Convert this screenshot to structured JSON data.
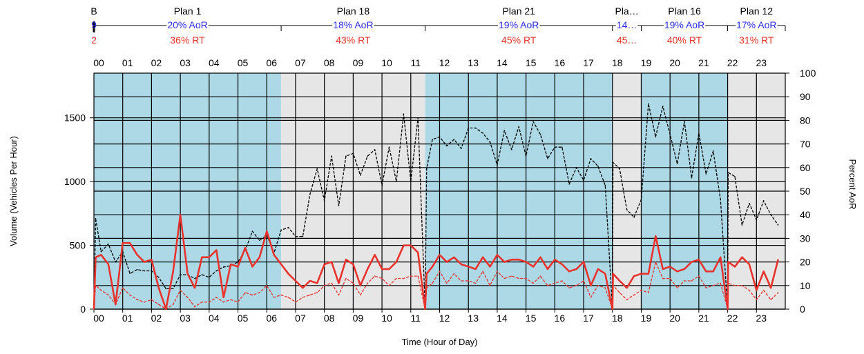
{
  "chart_data": {
    "type": "line",
    "xlabel": "Time (Hour of Day)",
    "ylabel": "Volume (Vehicles Per Hour)",
    "y2label": "Percent AoR",
    "xlim": [
      0,
      24
    ],
    "ylim": [
      0,
      1850
    ],
    "y2lim": [
      0,
      100
    ],
    "x_ticks": [
      "00",
      "01",
      "02",
      "03",
      "04",
      "05",
      "06",
      "07",
      "08",
      "09",
      "10",
      "11",
      "12",
      "13",
      "14",
      "15",
      "16",
      "17",
      "18",
      "19",
      "20",
      "21",
      "22",
      "23"
    ],
    "y_ticks": [
      0,
      500,
      1000,
      1500
    ],
    "y2_ticks": [
      0,
      10,
      20,
      30,
      40,
      50,
      60,
      70,
      80,
      90,
      100
    ],
    "grid": true,
    "top_legend": [
      "B",
      "9",
      "2"
    ],
    "plans": [
      {
        "name": "Plan 1",
        "aor": "20% AoR",
        "rt": "36% RT",
        "start": 0.0,
        "end": 6.5,
        "color": "#add8e6"
      },
      {
        "name": "Plan 18",
        "aor": "18% AoR",
        "rt": "43% RT",
        "start": 6.5,
        "end": 11.5,
        "color": "#e6e6e6"
      },
      {
        "name": "Plan 21",
        "aor": "19% AoR",
        "rt": "45% RT",
        "start": 11.5,
        "end": 18.0,
        "color": "#add8e6"
      },
      {
        "name": "Pla…",
        "aor": "14…",
        "rt": "45…",
        "start": 18.0,
        "end": 19.0,
        "color": "#e6e6e6"
      },
      {
        "name": "Plan 16",
        "aor": "19% AoR",
        "rt": "40% RT",
        "start": 19.0,
        "end": 22.0,
        "color": "#add8e6"
      },
      {
        "name": "Plan 12",
        "aor": "17% AoR",
        "rt": "31% RT",
        "start": 22.0,
        "end": 24.0,
        "color": "#e6e6e6"
      }
    ],
    "series": [
      {
        "axis": "y",
        "color": "#000000",
        "style": "dashed",
        "points": [
          [
            0.0,
            0
          ],
          [
            0.06,
            710
          ],
          [
            0.25,
            450
          ],
          [
            0.5,
            510
          ],
          [
            0.75,
            370
          ],
          [
            1.0,
            450
          ],
          [
            1.25,
            280
          ],
          [
            1.5,
            310
          ],
          [
            1.75,
            300
          ],
          [
            2.0,
            300
          ],
          [
            2.25,
            250
          ],
          [
            2.5,
            160
          ],
          [
            2.75,
            160
          ],
          [
            3.0,
            270
          ],
          [
            3.25,
            270
          ],
          [
            3.5,
            240
          ],
          [
            3.75,
            270
          ],
          [
            4.0,
            250
          ],
          [
            4.25,
            300
          ],
          [
            4.5,
            330
          ],
          [
            4.75,
            340
          ],
          [
            5.0,
            370
          ],
          [
            5.25,
            460
          ],
          [
            5.5,
            610
          ],
          [
            5.75,
            540
          ],
          [
            6.0,
            580
          ],
          [
            6.25,
            440
          ],
          [
            6.5,
            620
          ],
          [
            6.75,
            640
          ],
          [
            7.0,
            570
          ],
          [
            7.25,
            570
          ],
          [
            7.5,
            900
          ],
          [
            7.75,
            1100
          ],
          [
            8.0,
            850
          ],
          [
            8.25,
            1200
          ],
          [
            8.5,
            810
          ],
          [
            8.75,
            1200
          ],
          [
            9.0,
            1220
          ],
          [
            9.25,
            1050
          ],
          [
            9.5,
            1200
          ],
          [
            9.75,
            1250
          ],
          [
            10.0,
            970
          ],
          [
            10.25,
            1270
          ],
          [
            10.5,
            1000
          ],
          [
            10.75,
            1530
          ],
          [
            11.0,
            1000
          ],
          [
            11.25,
            1500
          ],
          [
            11.5,
            0
          ],
          [
            11.55,
            1100
          ],
          [
            11.75,
            1330
          ],
          [
            12.0,
            1350
          ],
          [
            12.25,
            1280
          ],
          [
            12.5,
            1330
          ],
          [
            12.75,
            1260
          ],
          [
            13.0,
            1420
          ],
          [
            13.25,
            1420
          ],
          [
            13.5,
            1380
          ],
          [
            13.75,
            1310
          ],
          [
            14.0,
            1130
          ],
          [
            14.25,
            1400
          ],
          [
            14.5,
            1250
          ],
          [
            14.75,
            1430
          ],
          [
            15.0,
            1200
          ],
          [
            15.25,
            1470
          ],
          [
            15.5,
            1370
          ],
          [
            15.75,
            1180
          ],
          [
            16.0,
            1270
          ],
          [
            16.25,
            1270
          ],
          [
            16.5,
            980
          ],
          [
            16.75,
            1110
          ],
          [
            17.0,
            1010
          ],
          [
            17.25,
            1180
          ],
          [
            17.5,
            1120
          ],
          [
            17.75,
            970
          ],
          [
            18.0,
            0
          ],
          [
            18.02,
            1150
          ],
          [
            18.25,
            1100
          ],
          [
            18.5,
            780
          ],
          [
            18.75,
            720
          ],
          [
            19.0,
            860
          ],
          [
            19.25,
            1610
          ],
          [
            19.5,
            1350
          ],
          [
            19.75,
            1590
          ],
          [
            20.0,
            1370
          ],
          [
            20.25,
            1140
          ],
          [
            20.5,
            1470
          ],
          [
            20.75,
            1030
          ],
          [
            21.0,
            1380
          ],
          [
            21.25,
            1060
          ],
          [
            21.5,
            1240
          ],
          [
            21.75,
            860
          ],
          [
            22.0,
            0
          ],
          [
            22.02,
            1070
          ],
          [
            22.25,
            1040
          ],
          [
            22.5,
            660
          ],
          [
            22.75,
            830
          ],
          [
            23.0,
            700
          ],
          [
            23.25,
            850
          ],
          [
            23.5,
            740
          ],
          [
            23.75,
            660
          ]
        ]
      },
      {
        "axis": "y2",
        "color": "#e8322c",
        "style": "solid",
        "points": [
          [
            0.0,
            0
          ],
          [
            0.06,
            22
          ],
          [
            0.25,
            23
          ],
          [
            0.5,
            19
          ],
          [
            0.75,
            2
          ],
          [
            1.0,
            28
          ],
          [
            1.25,
            28
          ],
          [
            1.5,
            23
          ],
          [
            1.75,
            20
          ],
          [
            2.0,
            21
          ],
          [
            2.25,
            9
          ],
          [
            2.5,
            0
          ],
          [
            2.75,
            16
          ],
          [
            3.0,
            40
          ],
          [
            3.25,
            15
          ],
          [
            3.5,
            9
          ],
          [
            3.75,
            22
          ],
          [
            4.0,
            22
          ],
          [
            4.25,
            25
          ],
          [
            4.5,
            5
          ],
          [
            4.75,
            19
          ],
          [
            5.0,
            18
          ],
          [
            5.25,
            26
          ],
          [
            5.5,
            18
          ],
          [
            5.75,
            22
          ],
          [
            6.0,
            33
          ],
          [
            6.25,
            23
          ],
          [
            6.5,
            19
          ],
          [
            6.75,
            15
          ],
          [
            7.0,
            12
          ],
          [
            7.25,
            9
          ],
          [
            7.5,
            12
          ],
          [
            7.75,
            11
          ],
          [
            8.0,
            19
          ],
          [
            8.25,
            20
          ],
          [
            8.5,
            11
          ],
          [
            8.75,
            21
          ],
          [
            9.0,
            19
          ],
          [
            9.25,
            10
          ],
          [
            9.5,
            17
          ],
          [
            9.75,
            23
          ],
          [
            10.0,
            17
          ],
          [
            10.25,
            17
          ],
          [
            10.5,
            20
          ],
          [
            10.75,
            27
          ],
          [
            11.0,
            27
          ],
          [
            11.25,
            24
          ],
          [
            11.5,
            0
          ],
          [
            11.55,
            15
          ],
          [
            11.75,
            18
          ],
          [
            12.0,
            23
          ],
          [
            12.25,
            20
          ],
          [
            12.5,
            22
          ],
          [
            12.75,
            19
          ],
          [
            13.0,
            18
          ],
          [
            13.25,
            17
          ],
          [
            13.5,
            22
          ],
          [
            13.75,
            18
          ],
          [
            14.0,
            23
          ],
          [
            14.25,
            20
          ],
          [
            14.5,
            21
          ],
          [
            14.75,
            21
          ],
          [
            15.0,
            20
          ],
          [
            15.25,
            18
          ],
          [
            15.5,
            22
          ],
          [
            15.75,
            17
          ],
          [
            16.0,
            21
          ],
          [
            16.25,
            19
          ],
          [
            16.5,
            16
          ],
          [
            16.75,
            17
          ],
          [
            17.0,
            20
          ],
          [
            17.25,
            10
          ],
          [
            17.5,
            17
          ],
          [
            17.75,
            15
          ],
          [
            18.0,
            0
          ],
          [
            18.02,
            15
          ],
          [
            18.25,
            12
          ],
          [
            18.5,
            9
          ],
          [
            18.75,
            14
          ],
          [
            19.0,
            15
          ],
          [
            19.25,
            15
          ],
          [
            19.5,
            31
          ],
          [
            19.75,
            17
          ],
          [
            20.0,
            18
          ],
          [
            20.25,
            16
          ],
          [
            20.5,
            17
          ],
          [
            20.75,
            20
          ],
          [
            21.0,
            21
          ],
          [
            21.25,
            16
          ],
          [
            21.5,
            16
          ],
          [
            21.75,
            22
          ],
          [
            22.0,
            0
          ],
          [
            22.02,
            20
          ],
          [
            22.25,
            18
          ],
          [
            22.5,
            22
          ],
          [
            22.75,
            19
          ],
          [
            23.0,
            8
          ],
          [
            23.25,
            16
          ],
          [
            23.5,
            9
          ],
          [
            23.75,
            21
          ]
        ]
      },
      {
        "axis": "y2",
        "color": "#e8322c",
        "style": "dashed",
        "points": [
          [
            0.0,
            0
          ],
          [
            0.06,
            10
          ],
          [
            0.25,
            8
          ],
          [
            0.5,
            6
          ],
          [
            0.75,
            2
          ],
          [
            1.0,
            9
          ],
          [
            1.25,
            6
          ],
          [
            1.5,
            4
          ],
          [
            1.75,
            3
          ],
          [
            2.0,
            4
          ],
          [
            2.25,
            2
          ],
          [
            2.5,
            0
          ],
          [
            2.75,
            2
          ],
          [
            3.0,
            8
          ],
          [
            3.25,
            5
          ],
          [
            3.5,
            1
          ],
          [
            3.75,
            3
          ],
          [
            4.0,
            3
          ],
          [
            4.25,
            5
          ],
          [
            4.5,
            3
          ],
          [
            4.75,
            4
          ],
          [
            5.0,
            3
          ],
          [
            5.25,
            7
          ],
          [
            5.5,
            6
          ],
          [
            5.75,
            7
          ],
          [
            6.0,
            10
          ],
          [
            6.25,
            5
          ],
          [
            6.5,
            6
          ],
          [
            6.75,
            5
          ],
          [
            7.0,
            3
          ],
          [
            7.25,
            5
          ],
          [
            7.5,
            6
          ],
          [
            7.75,
            7
          ],
          [
            8.0,
            10
          ],
          [
            8.25,
            11
          ],
          [
            8.5,
            6
          ],
          [
            8.75,
            13
          ],
          [
            9.0,
            11
          ],
          [
            9.25,
            6
          ],
          [
            9.5,
            11
          ],
          [
            9.75,
            14
          ],
          [
            10.0,
            13
          ],
          [
            10.25,
            10
          ],
          [
            10.5,
            13
          ],
          [
            10.75,
            13
          ],
          [
            11.0,
            14
          ],
          [
            11.25,
            14
          ],
          [
            11.5,
            0
          ],
          [
            11.55,
            9
          ],
          [
            11.75,
            11
          ],
          [
            12.0,
            16
          ],
          [
            12.25,
            11
          ],
          [
            12.5,
            15
          ],
          [
            12.75,
            12
          ],
          [
            13.0,
            12
          ],
          [
            13.25,
            11
          ],
          [
            13.5,
            16
          ],
          [
            13.75,
            10
          ],
          [
            14.0,
            16
          ],
          [
            14.25,
            13
          ],
          [
            14.5,
            14
          ],
          [
            14.75,
            13
          ],
          [
            15.0,
            13
          ],
          [
            15.25,
            11
          ],
          [
            15.5,
            14
          ],
          [
            15.75,
            10
          ],
          [
            16.0,
            11
          ],
          [
            16.25,
            12
          ],
          [
            16.5,
            9
          ],
          [
            16.75,
            10
          ],
          [
            17.0,
            12
          ],
          [
            17.25,
            5
          ],
          [
            17.5,
            10
          ],
          [
            17.75,
            9
          ],
          [
            18.0,
            0
          ],
          [
            18.02,
            10
          ],
          [
            18.25,
            7
          ],
          [
            18.5,
            4
          ],
          [
            18.75,
            6
          ],
          [
            19.0,
            8
          ],
          [
            19.25,
            7
          ],
          [
            19.5,
            20
          ],
          [
            19.75,
            13
          ],
          [
            20.0,
            13
          ],
          [
            20.25,
            9
          ],
          [
            20.5,
            12
          ],
          [
            20.75,
            12
          ],
          [
            21.0,
            14
          ],
          [
            21.25,
            9
          ],
          [
            21.5,
            10
          ],
          [
            21.75,
            11
          ],
          [
            22.0,
            0
          ],
          [
            22.02,
            11
          ],
          [
            22.25,
            10
          ],
          [
            22.5,
            10
          ],
          [
            22.75,
            8
          ],
          [
            23.0,
            4
          ],
          [
            23.25,
            8
          ],
          [
            23.5,
            4
          ],
          [
            23.75,
            7
          ]
        ]
      }
    ]
  }
}
